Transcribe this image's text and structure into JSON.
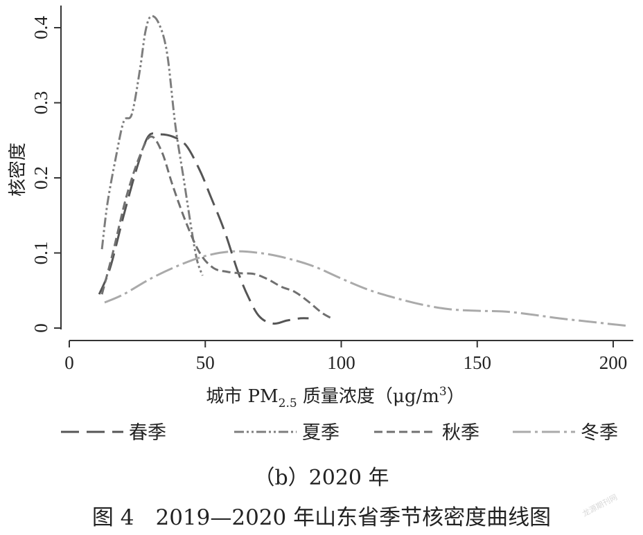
{
  "chart_data": {
    "type": "line",
    "xlabel_main": "城市 PM",
    "xlabel_sub": "2.5",
    "xlabel_rest": " 质量浓度（μg/m",
    "xlabel_sup": "3",
    "xlabel_end": "）",
    "ylabel": "核密度",
    "xlim": [
      0,
      205
    ],
    "ylim": [
      0,
      0.43
    ],
    "x_ticks": [
      0,
      50,
      100,
      150,
      200
    ],
    "y_ticks": [
      0,
      0.1,
      0.2,
      0.3,
      0.4
    ],
    "x_tick_labels": [
      "0",
      "50",
      "100",
      "150",
      "200"
    ],
    "y_tick_labels": [
      "0",
      "0.1",
      "0.2",
      "0.3",
      "0.4"
    ],
    "legend_position": "bottom",
    "grid": false,
    "series": [
      {
        "name": "春季",
        "color": "#555555",
        "dash": "26,11",
        "width": 3,
        "points": [
          [
            11,
            0.045
          ],
          [
            15,
            0.08
          ],
          [
            20,
            0.15
          ],
          [
            25,
            0.215
          ],
          [
            29,
            0.255
          ],
          [
            33,
            0.258
          ],
          [
            38,
            0.255
          ],
          [
            43,
            0.243
          ],
          [
            48,
            0.21
          ],
          [
            52,
            0.175
          ],
          [
            57,
            0.13
          ],
          [
            62,
            0.075
          ],
          [
            66,
            0.04
          ],
          [
            70,
            0.015
          ],
          [
            75,
            0.006
          ],
          [
            80,
            0.01
          ],
          [
            85,
            0.013
          ],
          [
            88,
            0.013
          ]
        ]
      },
      {
        "name": "夏季",
        "color": "#7d7d7d",
        "dash": "14,4,3,4,3,4",
        "width": 3,
        "points": [
          [
            12,
            0.105
          ],
          [
            14,
            0.165
          ],
          [
            17,
            0.225
          ],
          [
            20,
            0.275
          ],
          [
            23,
            0.285
          ],
          [
            26,
            0.345
          ],
          [
            28,
            0.395
          ],
          [
            30,
            0.415
          ],
          [
            33,
            0.405
          ],
          [
            36,
            0.365
          ],
          [
            39,
            0.27
          ],
          [
            42,
            0.2
          ],
          [
            45,
            0.13
          ],
          [
            47,
            0.09
          ],
          [
            49,
            0.07
          ]
        ]
      },
      {
        "name": "秋季",
        "color": "#707070",
        "dash": "12,6",
        "width": 3,
        "points": [
          [
            12,
            0.045
          ],
          [
            16,
            0.1
          ],
          [
            21,
            0.175
          ],
          [
            26,
            0.23
          ],
          [
            30,
            0.255
          ],
          [
            34,
            0.235
          ],
          [
            38,
            0.19
          ],
          [
            43,
            0.14
          ],
          [
            48,
            0.1
          ],
          [
            53,
            0.08
          ],
          [
            58,
            0.075
          ],
          [
            63,
            0.073
          ],
          [
            68,
            0.072
          ],
          [
            73,
            0.065
          ],
          [
            78,
            0.055
          ],
          [
            83,
            0.048
          ],
          [
            88,
            0.035
          ],
          [
            93,
            0.02
          ],
          [
            97,
            0.012
          ]
        ]
      },
      {
        "name": "冬季",
        "color": "#aaaaaa",
        "dash": "26,6,4,6",
        "width": 3,
        "points": [
          [
            13,
            0.034
          ],
          [
            20,
            0.045
          ],
          [
            30,
            0.066
          ],
          [
            40,
            0.083
          ],
          [
            50,
            0.096
          ],
          [
            60,
            0.102
          ],
          [
            70,
            0.1
          ],
          [
            80,
            0.093
          ],
          [
            90,
            0.082
          ],
          [
            100,
            0.066
          ],
          [
            110,
            0.051
          ],
          [
            120,
            0.04
          ],
          [
            130,
            0.031
          ],
          [
            140,
            0.025
          ],
          [
            150,
            0.023
          ],
          [
            160,
            0.022
          ],
          [
            170,
            0.018
          ],
          [
            180,
            0.013
          ],
          [
            190,
            0.009
          ],
          [
            200,
            0.005
          ],
          [
            205,
            0.003
          ]
        ]
      }
    ]
  },
  "captions": {
    "sub": "（b）2020 年",
    "main": "图 4　2019—2020 年山东省季节核密度曲线图"
  },
  "watermark": "龙源期刊网"
}
